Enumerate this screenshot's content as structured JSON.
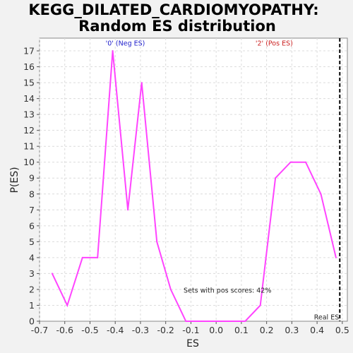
{
  "chart_data": {
    "type": "line",
    "title_lines": [
      "KEGG_DILATED_CARDIOMYOPATHY:",
      "Random ES distribution"
    ],
    "xlabel": "ES",
    "ylabel": "P(ES)",
    "xlim": [
      -0.7,
      0.52
    ],
    "ylim": [
      0,
      17.8
    ],
    "xticks": [
      -0.7,
      -0.6,
      -0.5,
      -0.4,
      -0.3,
      -0.2,
      -0.1,
      0.0,
      0.1,
      0.2,
      0.3,
      0.4,
      0.5
    ],
    "xtick_labels": [
      "-0.7",
      "-0.6",
      "-0.5",
      "-0.4",
      "-0.3",
      "-0.2",
      "-0.1",
      "0.0",
      "0.1",
      "0.2",
      "0.3",
      "0.4",
      "0.5"
    ],
    "yticks": [
      0,
      1,
      2,
      3,
      4,
      5,
      6,
      7,
      8,
      9,
      10,
      11,
      12,
      13,
      14,
      15,
      16,
      17
    ],
    "grid": true,
    "series": [
      {
        "color": "#ff44ff",
        "x": [
          -0.65,
          -0.59,
          -0.53,
          -0.47,
          -0.41,
          -0.35,
          -0.295,
          -0.235,
          -0.18,
          -0.12,
          -0.06,
          0.0,
          0.06,
          0.115,
          0.175,
          0.235,
          0.295,
          0.355,
          0.415,
          0.475
        ],
        "y": [
          3,
          1,
          4,
          4,
          17,
          7,
          15,
          5,
          2,
          0,
          0,
          0,
          0,
          0,
          1,
          9,
          10,
          10,
          8,
          4
        ]
      }
    ],
    "real_es": {
      "x": 0.49,
      "label": "Real ES",
      "color": "#000000"
    },
    "annotations": [
      {
        "text": "'0' (Neg ES)",
        "x": -0.36,
        "y": 17.5,
        "color": "#2222cc"
      },
      {
        "text": "'2' (Pos ES)",
        "x": 0.23,
        "y": 17.5,
        "color": "#cc2222"
      },
      {
        "text": "Sets with pos scores: 42%",
        "x": 0.045,
        "y": 1.95,
        "color": "#222222"
      }
    ]
  }
}
